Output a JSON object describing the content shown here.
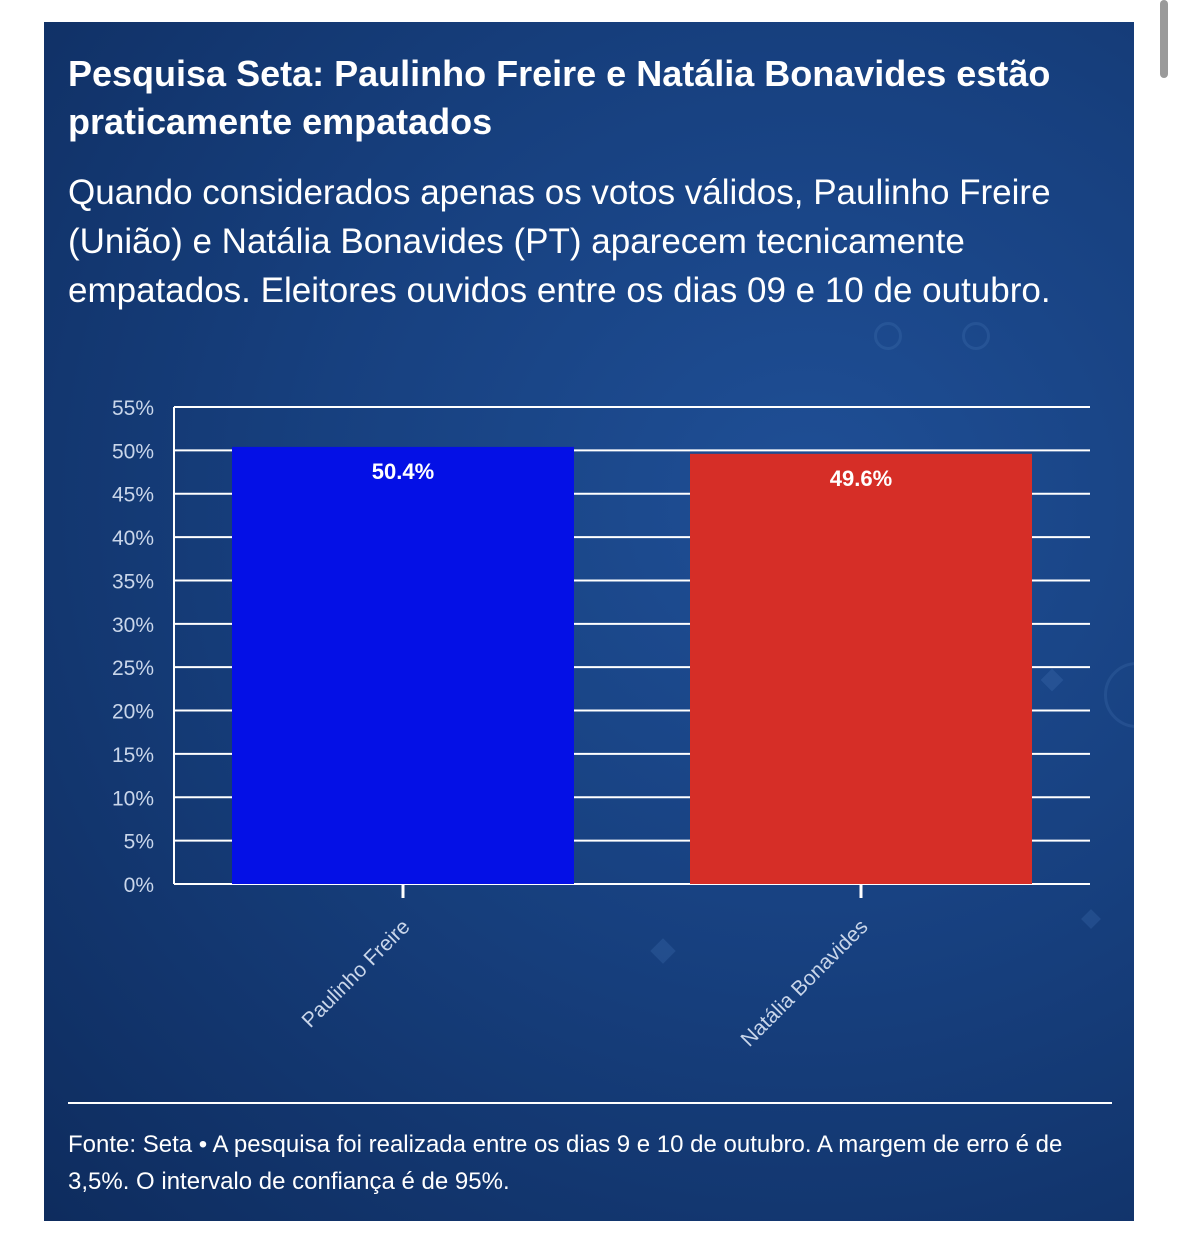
{
  "title": "Pesquisa Seta: Paulinho Freire e Natália Bonavides estão praticamente empatados",
  "subtitle": "Quando considerados apenas os votos válidos, Paulinho Freire (União) e Natália Bonavides (PT) aparecem tecnicamente empatados. Eleitores ouvidos entre os dias 09 e 10 de outubro.",
  "source": "Fonte: Seta • A pesquisa foi realizada entre os dias 9 e 10 de outubro. A margem de erro é de 3,5%. O intervalo de confiança é de 95%.",
  "chart_data": {
    "type": "bar",
    "categories": [
      "Paulinho Freire",
      "Natália Bonavides"
    ],
    "values": [
      50.4,
      49.6
    ],
    "data_labels": [
      "50.4%",
      "49.6%"
    ],
    "colors": [
      "#0410e6",
      "#d62e27"
    ],
    "ylim": [
      0,
      55
    ],
    "y_ticks": [
      "0%",
      "5%",
      "10%",
      "15%",
      "20%",
      "25%",
      "30%",
      "35%",
      "40%",
      "45%",
      "50%",
      "55%"
    ],
    "grid": true
  }
}
